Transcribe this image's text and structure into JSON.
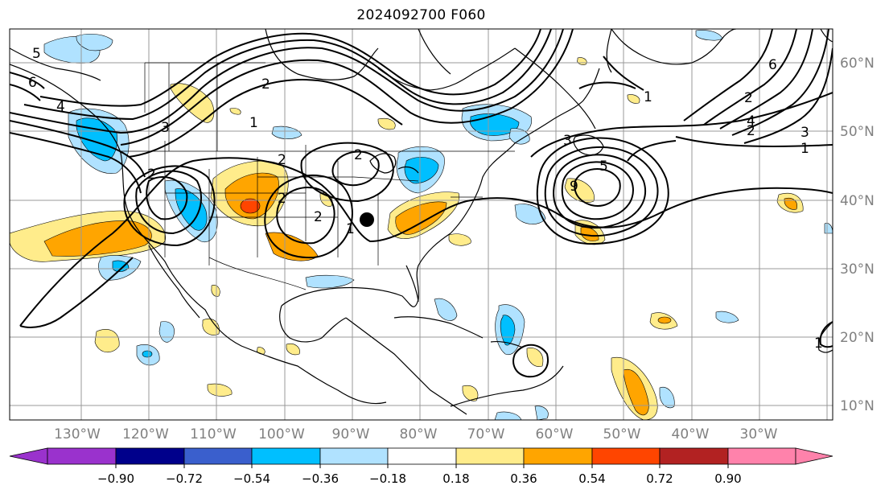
{
  "title": "2024092700 F060",
  "lat_labels": [
    "60°N",
    "50°N",
    "40°N",
    "30°N",
    "20°N",
    "10°N"
  ],
  "lon_labels": [
    "130°W",
    "120°W",
    "110°W",
    "100°W",
    "90°W",
    "80°W",
    "70°W",
    "60°W",
    "50°W",
    "40°W",
    "30°W"
  ],
  "colorbar": {
    "ticks": [
      "−0.90",
      "−0.72",
      "−0.54",
      "−0.36",
      "−0.18",
      "0.18",
      "0.36",
      "0.54",
      "0.72",
      "0.90"
    ],
    "colors": [
      "#9a32cd",
      "#00008b",
      "#3a5fcd",
      "#00bfff",
      "#b0e2ff",
      "#ffffff",
      "#ffec8b",
      "#ffa500",
      "#ff4500",
      "#b22222",
      "#ff82ab"
    ]
  },
  "contour_labels": [
    "5",
    "6",
    "4",
    "3",
    "2",
    "1",
    "2",
    "2",
    "2",
    "1",
    "2",
    "2",
    "6",
    "1",
    "2",
    "3",
    "4",
    "5",
    "2",
    "1",
    "3",
    "9",
    "1"
  ],
  "marker": "station-dot"
}
